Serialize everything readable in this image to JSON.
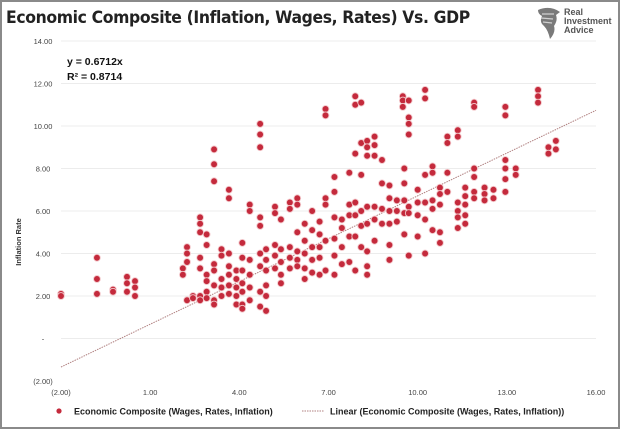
{
  "chart_data": {
    "type": "scatter",
    "title": "Economic Composite (Inflation, Wages, Rates) Vs. GDP",
    "xlabel": "",
    "ylabel": "Inflation Rate",
    "xlim": [
      -2,
      16
    ],
    "ylim": [
      -2,
      14
    ],
    "x_ticks": [
      -2,
      1,
      4,
      7,
      10,
      13,
      16
    ],
    "x_tick_labels": [
      "(2.00)",
      "1.00",
      "4.00",
      "7.00",
      "10.00",
      "13.00",
      "16.00"
    ],
    "y_ticks": [
      14,
      12,
      10,
      8,
      6,
      4,
      2,
      0,
      -2
    ],
    "y_tick_labels": [
      "14.00",
      "12.00",
      "10.00",
      "8.00",
      "6.00",
      "4.00",
      "2.00",
      "-",
      "(2.00)"
    ],
    "grid": "horizontal",
    "legend_position": "bottom",
    "annotations": {
      "equation": "y = 0.6712x",
      "r_squared": "R² = 0.8714"
    },
    "trendline": {
      "name": "Linear (Economic Composite (Wages, Rates, Inflation))",
      "slope": 0.6712,
      "x_range": [
        -2,
        16
      ],
      "color": "#b08080"
    },
    "series": [
      {
        "name": "Economic Composite (Wages, Rates, Inflation)",
        "color": "#c42a3c",
        "columns": [
          [
            -2.0,
            [
              2.1,
              2.0
            ]
          ],
          [
            -0.79,
            [
              3.8,
              2.8,
              2.1
            ]
          ],
          [
            -0.25,
            [
              2.3,
              2.2
            ]
          ],
          [
            0.22,
            [
              2.9,
              2.6,
              2.2
            ]
          ],
          [
            0.49,
            [
              2.7,
              2.4,
              2.0
            ]
          ],
          [
            2.1,
            [
              3.3,
              3.0
            ]
          ],
          [
            2.24,
            [
              4.3,
              4.0,
              3.6,
              1.8
            ]
          ],
          [
            2.44,
            [
              2.0,
              1.9
            ]
          ],
          [
            2.68,
            [
              5.7,
              5.4,
              5.0,
              3.8,
              3.3,
              2.0,
              1.8
            ]
          ],
          [
            2.9,
            [
              4.9,
              4.4,
              3.0,
              2.7,
              2.2,
              1.9
            ]
          ],
          [
            3.15,
            [
              8.9,
              8.2,
              7.4,
              3.5,
              3.2,
              2.5,
              1.8,
              1.6
            ]
          ],
          [
            3.4,
            [
              4.2,
              3.9,
              2.8,
              2.4,
              2.0
            ]
          ],
          [
            3.65,
            [
              7.0,
              6.6,
              4.0,
              3.4,
              3.0,
              2.5,
              2.1
            ]
          ],
          [
            3.9,
            [
              3.2,
              2.8,
              2.4,
              2.0,
              1.6
            ]
          ],
          [
            4.1,
            [
              4.5,
              3.8,
              3.2,
              2.6,
              2.2,
              1.6,
              1.4
            ]
          ],
          [
            4.35,
            [
              6.3,
              6.0,
              3.7,
              3.0,
              2.4,
              1.8
            ]
          ],
          [
            4.7,
            [
              10.1,
              9.6,
              9.0,
              5.7,
              5.3,
              4.0,
              3.4,
              2.2,
              1.5
            ]
          ],
          [
            4.9,
            [
              4.2,
              3.7,
              3.2,
              2.5,
              2.0,
              1.3
            ]
          ],
          [
            5.2,
            [
              6.2,
              5.9,
              4.4,
              3.9,
              3.3
            ]
          ],
          [
            5.4,
            [
              5.6,
              4.2,
              3.6,
              3.0,
              2.6
            ]
          ],
          [
            5.7,
            [
              6.4,
              6.1,
              4.3,
              3.8,
              3.3
            ]
          ],
          [
            5.95,
            [
              6.6,
              6.3,
              5.0,
              4.1,
              3.7,
              3.4
            ]
          ],
          [
            6.2,
            [
              5.4,
              4.6,
              4.0,
              3.3,
              2.8
            ]
          ],
          [
            6.45,
            [
              6.0,
              5.1,
              4.3,
              3.7,
              3.1
            ]
          ],
          [
            6.7,
            [
              5.5,
              4.9,
              4.3,
              3.8,
              3.0
            ]
          ],
          [
            6.9,
            [
              10.8,
              10.5,
              6.6,
              6.3,
              4.6,
              3.2
            ]
          ],
          [
            7.2,
            [
              7.6,
              6.9,
              5.7,
              4.7,
              3.9,
              3.0
            ]
          ],
          [
            7.45,
            [
              5.6,
              5.2,
              4.3,
              3.5
            ]
          ],
          [
            7.7,
            [
              7.8,
              6.3,
              5.8,
              4.8,
              3.6
            ]
          ],
          [
            7.9,
            [
              11.4,
              11.0,
              8.7,
              6.4,
              5.8,
              4.8,
              3.2
            ]
          ],
          [
            8.1,
            [
              11.1,
              9.2,
              7.7,
              6.0,
              5.3,
              4.3
            ]
          ],
          [
            8.3,
            [
              9.3,
              9.0,
              8.6,
              6.2,
              5.4,
              4.1,
              3.4,
              3.0
            ]
          ],
          [
            8.55,
            [
              9.5,
              9.1,
              8.6,
              6.2,
              5.6,
              4.6
            ]
          ],
          [
            8.8,
            [
              8.4,
              7.3,
              6.1,
              5.4
            ]
          ],
          [
            9.05,
            [
              7.2,
              6.6,
              6.0,
              5.4,
              4.4,
              3.7
            ]
          ],
          [
            9.3,
            [
              6.5,
              6.0,
              5.5
            ]
          ],
          [
            9.5,
            [
              11.4,
              11.2,
              10.9
            ]
          ],
          [
            9.55,
            [
              8.0,
              7.3,
              6.5,
              5.9,
              4.9
            ]
          ],
          [
            9.7,
            [
              11.2,
              10.4,
              10.1,
              9.6,
              6.2,
              5.9,
              3.9
            ]
          ],
          [
            10.0,
            [
              7.0,
              6.4,
              5.8,
              4.8
            ]
          ],
          [
            10.25,
            [
              11.7,
              11.3,
              7.7,
              6.4,
              5.6,
              4.0
            ]
          ],
          [
            10.5,
            [
              8.1,
              7.8,
              6.5,
              6.1,
              5.1
            ]
          ],
          [
            10.75,
            [
              7.1,
              6.8,
              6.3,
              5.0,
              4.5
            ]
          ],
          [
            11.0,
            [
              9.5,
              9.2,
              7.8,
              6.9
            ]
          ],
          [
            11.35,
            [
              9.8,
              9.5,
              6.4,
              6.0,
              5.7,
              5.2
            ]
          ],
          [
            11.6,
            [
              7.1,
              6.7,
              6.3,
              5.8,
              5.4
            ]
          ],
          [
            11.9,
            [
              11.1,
              10.9,
              8.0,
              7.6,
              6.9,
              6.6
            ]
          ],
          [
            12.25,
            [
              7.1,
              6.8,
              6.5
            ]
          ],
          [
            12.55,
            [
              7.0,
              6.6
            ]
          ],
          [
            12.95,
            [
              10.9,
              10.5,
              8.4,
              8.0,
              7.5,
              6.9
            ]
          ],
          [
            13.3,
            [
              8.0,
              7.7
            ]
          ],
          [
            14.05,
            [
              11.7,
              11.4,
              11.1
            ]
          ],
          [
            14.4,
            [
              9.0,
              8.7
            ]
          ],
          [
            14.65,
            [
              9.3,
              8.9
            ]
          ]
        ]
      }
    ]
  },
  "logo": {
    "line1": "Real",
    "line2": "Investment",
    "line3": "Advice"
  }
}
